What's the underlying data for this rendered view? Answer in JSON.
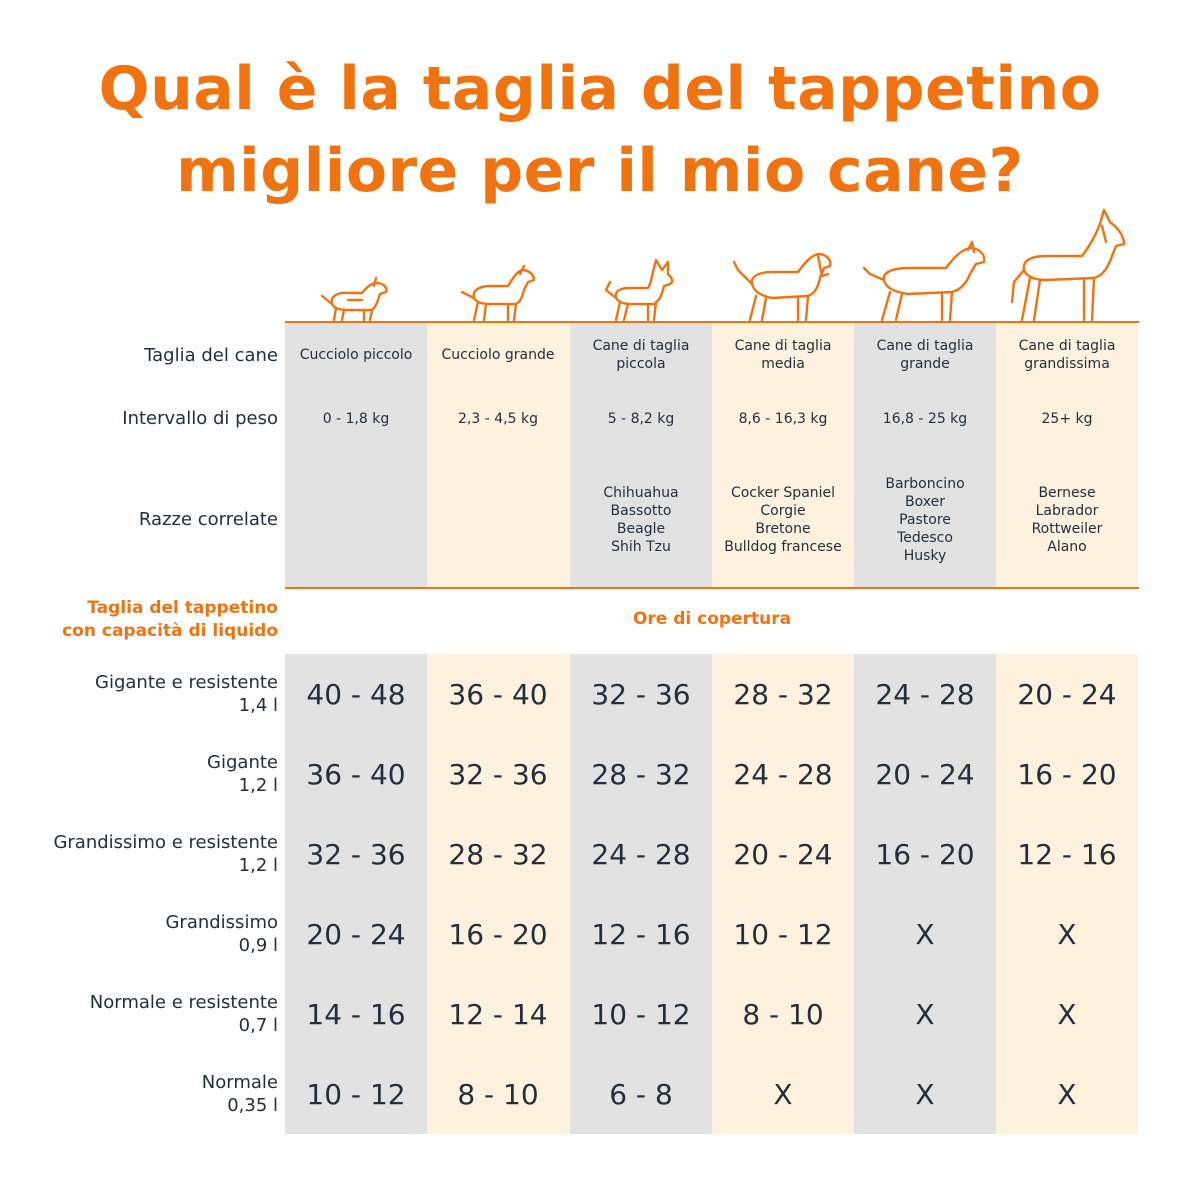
{
  "title": {
    "line1": "Qual è la taglia del tappetino",
    "line2": "migliore per il mio cane?"
  },
  "colors": {
    "accent": "#f07312",
    "gray_column": "#e2e2e2",
    "cream_column": "#fef2de",
    "text": "#232f3e"
  },
  "dogs": [
    "small-puppy-icon",
    "large-puppy-icon",
    "small-dog-icon",
    "medium-dog-icon",
    "large-dog-icon",
    "giant-dog-icon"
  ],
  "rows": {
    "size": "Taglia del cane",
    "weight": "Intervallo di peso",
    "breeds": "Razze correlate"
  },
  "columns": [
    {
      "size": [
        "Cucciolo piccolo"
      ],
      "weight": "0 - 1,8 kg",
      "breeds": []
    },
    {
      "size": [
        "Cucciolo grande"
      ],
      "weight": "2,3 - 4,5 kg",
      "breeds": []
    },
    {
      "size": [
        "Cane di taglia",
        "piccola"
      ],
      "weight": "5 - 8,2 kg",
      "breeds": [
        "Chihuahua",
        "Bassotto",
        "Beagle",
        "Shih Tzu"
      ]
    },
    {
      "size": [
        "Cane di taglia",
        "media"
      ],
      "weight": "8,6 - 16,3 kg",
      "breeds": [
        "Cocker Spaniel",
        "Corgie",
        "Bretone",
        "Bulldog francese"
      ]
    },
    {
      "size": [
        "Cane di taglia",
        "grande"
      ],
      "weight": "16,8 - 25 kg",
      "breeds": [
        "Barboncino",
        "Boxer",
        "Pastore",
        "Tedesco",
        "Husky"
      ]
    },
    {
      "size": [
        "Cane di taglia",
        "grandissima"
      ],
      "weight": "25+ kg",
      "breeds": [
        "Bernese",
        "Labrador",
        "Rottweiler",
        "Alano"
      ]
    }
  ],
  "mat_section": {
    "label_line1": "Taglia del tappetino",
    "label_line2": "con capacità di liquido",
    "coverage": "Ore di copertura"
  },
  "mats": [
    {
      "name": "Gigante e resistente",
      "capacity": "1,4 l",
      "hours": [
        "40 - 48",
        "36 - 40",
        "32 - 36",
        "28 - 32",
        "24 - 28",
        "20 - 24"
      ]
    },
    {
      "name": "Gigante",
      "capacity": "1,2 l",
      "hours": [
        "36 - 40",
        "32 - 36",
        "28 - 32",
        "24 - 28",
        "20 - 24",
        "16 - 20"
      ]
    },
    {
      "name": "Grandissimo e resistente",
      "capacity": "1,2 l",
      "hours": [
        "32 - 36",
        "28 - 32",
        "24 - 28",
        "20 - 24",
        "16 - 20",
        "12 - 16"
      ]
    },
    {
      "name": "Grandissimo",
      "capacity": "0,9 l",
      "hours": [
        "20 - 24",
        "16 - 20",
        "12 - 16",
        "10 - 12",
        "X",
        "X"
      ]
    },
    {
      "name": "Normale e resistente",
      "capacity": "0,7 l",
      "hours": [
        "14 - 16",
        "12 - 14",
        "10 - 12",
        "8 - 10",
        "X",
        "X"
      ]
    },
    {
      "name": "Normale",
      "capacity": "0,35 l",
      "hours": [
        "10 - 12",
        "8 - 10",
        "6 - 8",
        "X",
        "X",
        "X"
      ]
    }
  ]
}
